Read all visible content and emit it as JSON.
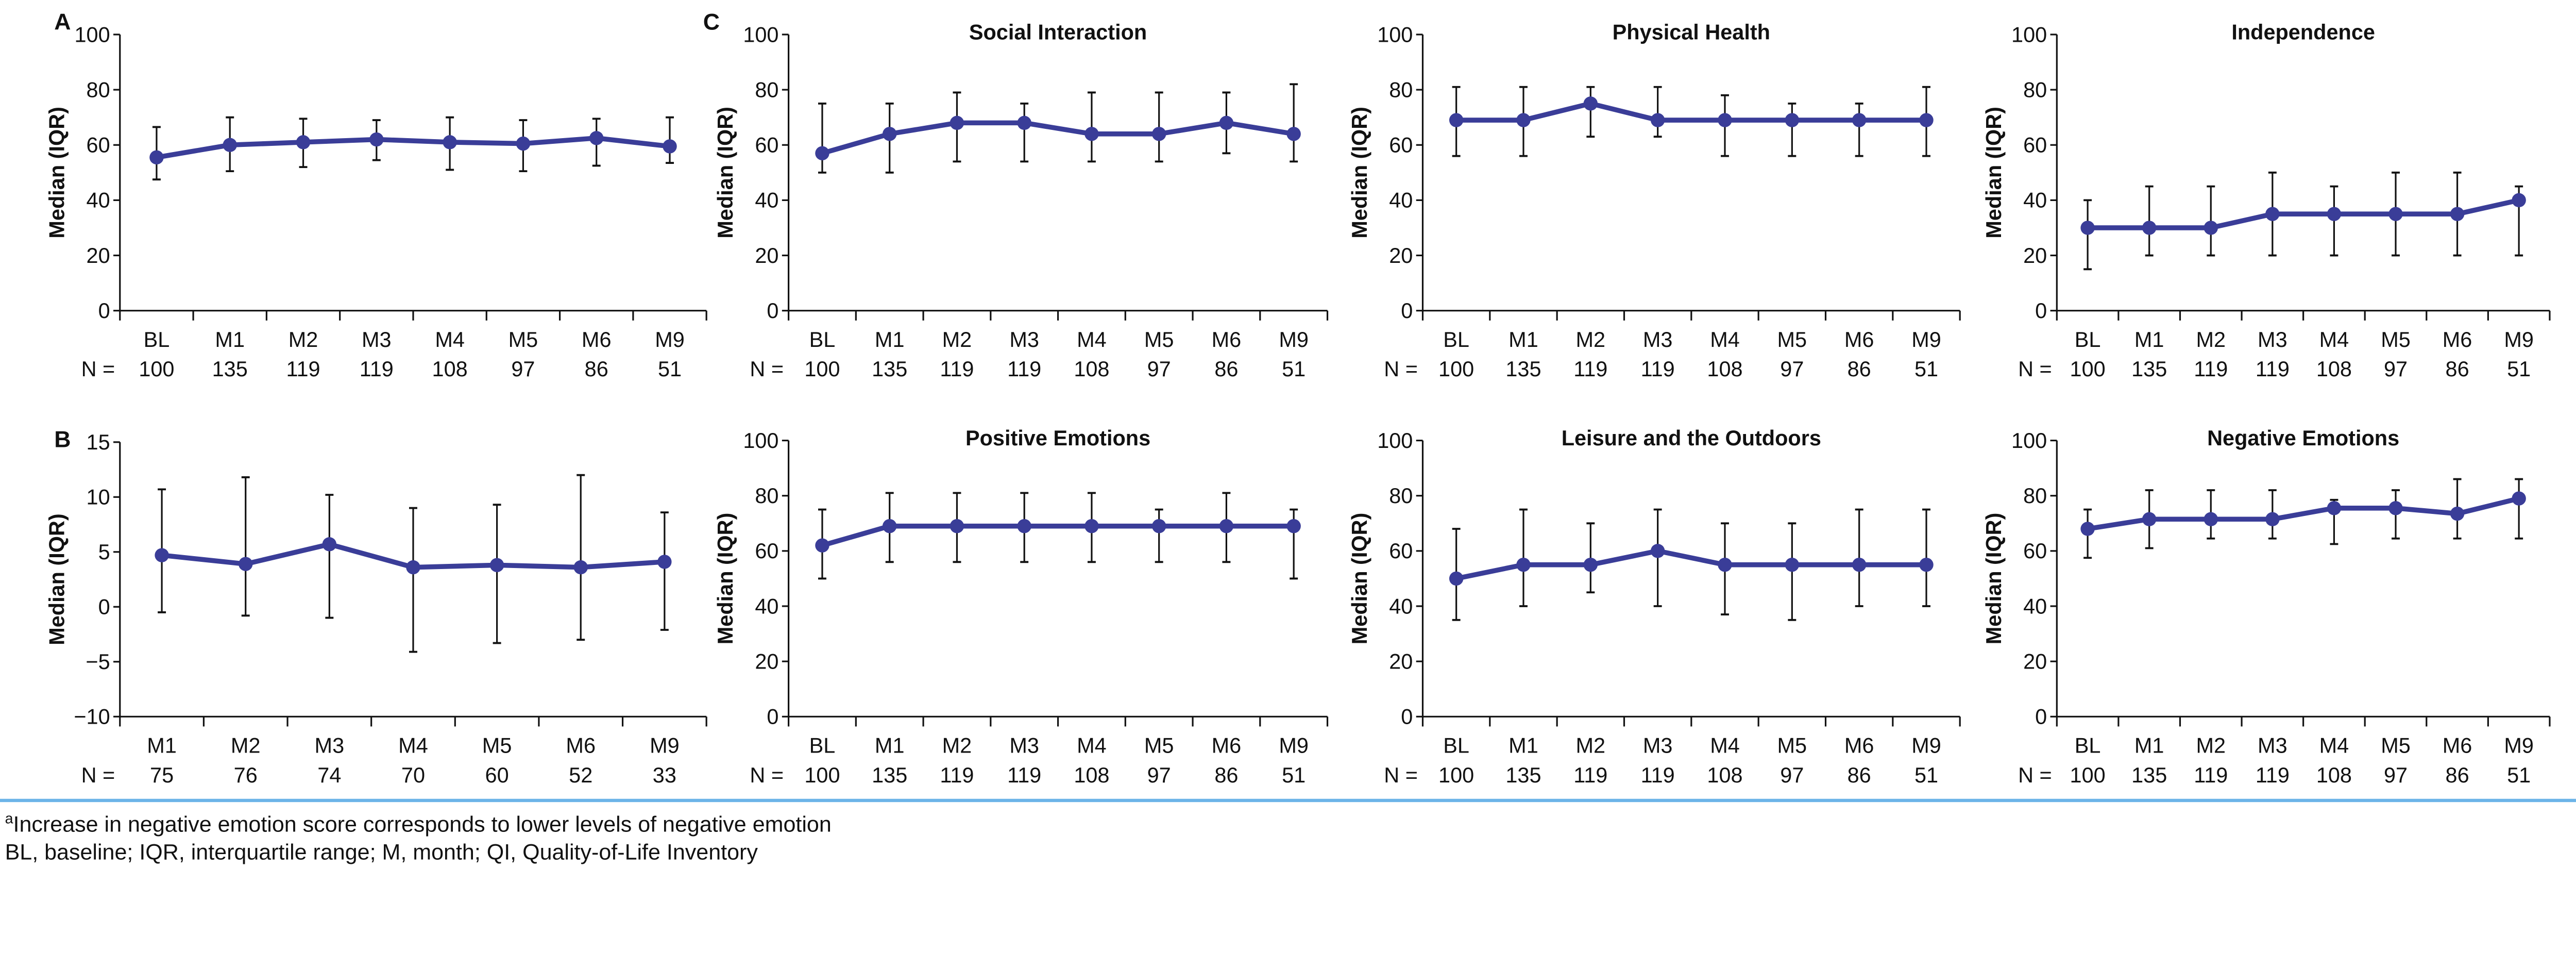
{
  "colors": {
    "series": "#3a3d98",
    "error_bar": "#111111",
    "separator": "#6cb4e8"
  },
  "footnotes": {
    "line1_sup": "a",
    "line1": "Increase in negative emotion score corresponds to lower levels of negative emotion",
    "line2": "BL, baseline; IQR, interquartile range; M, month; QI, Quality-of-Life Inventory"
  },
  "chart_data": [
    {
      "panel_label": "A",
      "title": "",
      "type": "line",
      "ylabel": "Median (IQR)",
      "ylim": [
        0,
        100
      ],
      "yticks": [
        "0",
        "20",
        "40",
        "60",
        "80",
        "100"
      ],
      "n_label": "N =",
      "categories": [
        "BL",
        "M1",
        "M2",
        "M3",
        "M4",
        "M5",
        "M6",
        "M9"
      ],
      "n": [
        "100",
        "135",
        "119",
        "119",
        "108",
        "97",
        "86",
        "51"
      ],
      "median": [
        55.5,
        60,
        61,
        62,
        61,
        60.5,
        62.5,
        59.5
      ],
      "q1": [
        47.5,
        50.5,
        52,
        54.5,
        51,
        50.5,
        52.5,
        53.5
      ],
      "q3": [
        66.5,
        70,
        69.5,
        69,
        70,
        69,
        69.5,
        70
      ]
    },
    {
      "panel_label": "C",
      "title": "Social Interaction",
      "type": "line",
      "ylabel": "Median (IQR)",
      "ylim": [
        0,
        100
      ],
      "yticks": [
        "0",
        "20",
        "40",
        "60",
        "80",
        "100"
      ],
      "n_label": "N =",
      "categories": [
        "BL",
        "M1",
        "M2",
        "M3",
        "M4",
        "M5",
        "M6",
        "M9"
      ],
      "n": [
        "100",
        "135",
        "119",
        "119",
        "108",
        "97",
        "86",
        "51"
      ],
      "median": [
        57,
        64,
        68,
        68,
        64,
        64,
        68,
        64
      ],
      "q1": [
        50,
        50,
        54,
        54,
        54,
        54,
        57,
        54
      ],
      "q3": [
        75,
        75,
        79,
        75,
        79,
        79,
        79,
        82
      ]
    },
    {
      "panel_label": "",
      "title": "Physical Health",
      "type": "line",
      "ylabel": "Median (IQR)",
      "ylim": [
        0,
        100
      ],
      "yticks": [
        "0",
        "20",
        "40",
        "60",
        "80",
        "100"
      ],
      "n_label": "N =",
      "categories": [
        "BL",
        "M1",
        "M2",
        "M3",
        "M4",
        "M5",
        "M6",
        "M9"
      ],
      "n": [
        "100",
        "135",
        "119",
        "119",
        "108",
        "97",
        "86",
        "51"
      ],
      "median": [
        69,
        69,
        75,
        69,
        69,
        69,
        69,
        69
      ],
      "q1": [
        56,
        56,
        63,
        63,
        56,
        56,
        56,
        56
      ],
      "q3": [
        81,
        81,
        81,
        81,
        78,
        75,
        75,
        81
      ]
    },
    {
      "panel_label": "",
      "title": "Independence",
      "type": "line",
      "ylabel": "Median (IQR)",
      "ylim": [
        0,
        100
      ],
      "yticks": [
        "0",
        "20",
        "40",
        "60",
        "80",
        "100"
      ],
      "n_label": "N =",
      "categories": [
        "BL",
        "M1",
        "M2",
        "M3",
        "M4",
        "M5",
        "M6",
        "M9"
      ],
      "n": [
        "100",
        "135",
        "119",
        "119",
        "108",
        "97",
        "86",
        "51"
      ],
      "median": [
        30,
        30,
        30,
        35,
        35,
        35,
        35,
        40
      ],
      "q1": [
        15,
        20,
        20,
        20,
        20,
        20,
        20,
        20
      ],
      "q3": [
        40,
        45,
        45,
        50,
        45,
        50,
        50,
        45
      ]
    },
    {
      "panel_label": "B",
      "title": "",
      "type": "line",
      "ylabel": "Median (IQR)",
      "ylim": [
        -10,
        15
      ],
      "yticks": [
        "−10",
        "−5",
        "0",
        "5",
        "10",
        "15"
      ],
      "n_label": "N =",
      "categories": [
        "M1",
        "M2",
        "M3",
        "M4",
        "M5",
        "M6",
        "M9"
      ],
      "n": [
        "75",
        "76",
        "74",
        "70",
        "60",
        "52",
        "33"
      ],
      "median": [
        4.7,
        3.9,
        5.7,
        3.6,
        3.8,
        3.6,
        4.1
      ],
      "q1": [
        -0.5,
        -0.8,
        -1,
        -4.1,
        -3.3,
        -3,
        -2.1
      ],
      "q3": [
        10.7,
        11.8,
        10.2,
        9,
        9.3,
        12,
        8.6
      ]
    },
    {
      "panel_label": "",
      "title": "Positive Emotions",
      "type": "line",
      "ylabel": "Median (IQR)",
      "ylim": [
        0,
        100
      ],
      "yticks": [
        "0",
        "20",
        "40",
        "60",
        "80",
        "100"
      ],
      "n_label": "N =",
      "categories": [
        "BL",
        "M1",
        "M2",
        "M3",
        "M4",
        "M5",
        "M6",
        "M9"
      ],
      "n": [
        "100",
        "135",
        "119",
        "119",
        "108",
        "97",
        "86",
        "51"
      ],
      "median": [
        62,
        69,
        69,
        69,
        69,
        69,
        69,
        69
      ],
      "q1": [
        50,
        56,
        56,
        56,
        56,
        56,
        56,
        50
      ],
      "q3": [
        75,
        81,
        81,
        81,
        81,
        75,
        81,
        75
      ]
    },
    {
      "panel_label": "",
      "title": "Leisure and the Outdoors",
      "type": "line",
      "ylabel": "Median (IQR)",
      "ylim": [
        0,
        100
      ],
      "yticks": [
        "0",
        "20",
        "40",
        "60",
        "80",
        "100"
      ],
      "n_label": "N =",
      "categories": [
        "BL",
        "M1",
        "M2",
        "M3",
        "M4",
        "M5",
        "M6",
        "M9"
      ],
      "n": [
        "100",
        "135",
        "119",
        "119",
        "108",
        "97",
        "86",
        "51"
      ],
      "median": [
        50,
        55,
        55,
        60,
        55,
        55,
        55,
        55
      ],
      "q1": [
        35,
        40,
        45,
        40,
        37,
        35,
        40,
        40
      ],
      "q3": [
        68,
        75,
        70,
        75,
        70,
        70,
        75,
        75
      ]
    },
    {
      "panel_label": "",
      "title": "Negative Emotions",
      "type": "line",
      "ylabel": "Median (IQR)",
      "ylim": [
        0,
        100
      ],
      "yticks": [
        "0",
        "20",
        "40",
        "60",
        "80",
        "100"
      ],
      "n_label": "N =",
      "categories": [
        "BL",
        "M1",
        "M2",
        "M3",
        "M4",
        "M5",
        "M6",
        "M9"
      ],
      "n": [
        "100",
        "135",
        "119",
        "119",
        "108",
        "97",
        "86",
        "51"
      ],
      "median": [
        68,
        71.5,
        71.5,
        71.5,
        75.5,
        75.5,
        73.5,
        79
      ],
      "q1": [
        57.5,
        61,
        64.5,
        64.5,
        62.5,
        64.5,
        64.5,
        64.5
      ],
      "q3": [
        75,
        82,
        82,
        82,
        78.5,
        82,
        86,
        86
      ]
    }
  ]
}
